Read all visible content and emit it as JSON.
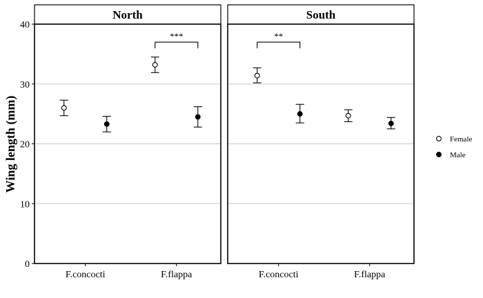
{
  "chart_data": {
    "type": "scatter",
    "ylabel": "Wing length (mm)",
    "xlabel": "",
    "ylim": [
      0,
      40
    ],
    "yticks": [
      0,
      10,
      20,
      30,
      40
    ],
    "categories": [
      "F.concocti",
      "F.flappa"
    ],
    "grid": true,
    "legend_position": "right",
    "legend": [
      {
        "name": "Female",
        "marker": "open-circle"
      },
      {
        "name": "Male",
        "marker": "filled-circle"
      }
    ],
    "panels": [
      {
        "title": "North",
        "series": [
          {
            "name": "Female",
            "points": [
              {
                "category": "F.concocti",
                "y": 26.0,
                "lower": 24.7,
                "upper": 27.3
              },
              {
                "category": "F.flappa",
                "y": 33.2,
                "lower": 31.9,
                "upper": 34.5
              }
            ]
          },
          {
            "name": "Male",
            "points": [
              {
                "category": "F.concocti",
                "y": 23.3,
                "lower": 22.0,
                "upper": 24.6
              },
              {
                "category": "F.flappa",
                "y": 24.5,
                "lower": 22.8,
                "upper": 26.2
              }
            ]
          }
        ],
        "annotations": [
          {
            "category": "F.flappa",
            "label": "***",
            "y": 37.0
          }
        ]
      },
      {
        "title": "South",
        "series": [
          {
            "name": "Female",
            "points": [
              {
                "category": "F.concocti",
                "y": 31.4,
                "lower": 30.2,
                "upper": 32.7
              },
              {
                "category": "F.flappa",
                "y": 24.7,
                "lower": 23.7,
                "upper": 25.7
              }
            ]
          },
          {
            "name": "Male",
            "points": [
              {
                "category": "F.concocti",
                "y": 25.0,
                "lower": 23.5,
                "upper": 26.6
              },
              {
                "category": "F.flappa",
                "y": 23.4,
                "lower": 22.5,
                "upper": 24.4
              }
            ]
          }
        ],
        "annotations": [
          {
            "category": "F.concocti",
            "label": "**",
            "y": 37.0
          }
        ]
      }
    ]
  }
}
